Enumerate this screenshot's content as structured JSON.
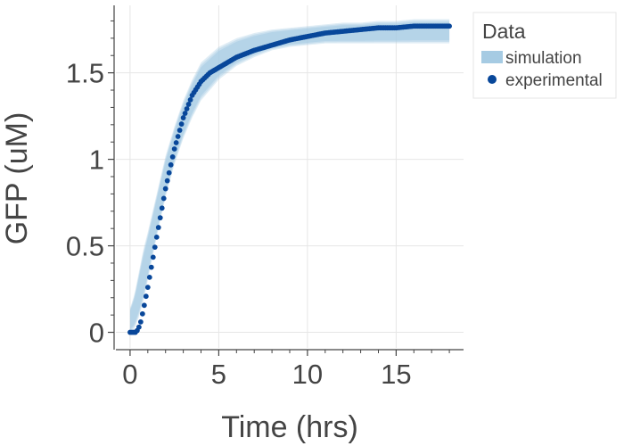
{
  "chart_data": {
    "type": "line",
    "xlabel": "Time (hrs)",
    "ylabel": "GFP (uM)",
    "xlim": [
      -0.8,
      18.8
    ],
    "ylim": [
      -0.09,
      1.89
    ],
    "xticks": [
      0,
      5,
      10,
      15
    ],
    "xtick_labels": [
      "0",
      "5",
      "10",
      "15"
    ],
    "yticks": [
      0,
      0.5,
      1,
      1.5
    ],
    "ytick_labels": [
      "0",
      "0.5",
      "1",
      "1.5"
    ],
    "legend": {
      "title": "Data",
      "position": "outside-right-top",
      "entries": [
        "simulation",
        "experimental"
      ]
    },
    "colors": {
      "simulation": "#a6cbe3",
      "experimental": "#08479a",
      "grid": "#e6e6e6",
      "axis": "#444444"
    },
    "series": [
      {
        "name": "simulation",
        "kind": "band",
        "x": [
          0,
          0.25,
          0.5,
          0.75,
          1,
          1.5,
          2,
          2.5,
          3,
          3.5,
          4,
          5,
          6,
          7,
          8,
          9,
          10,
          11,
          12,
          13,
          14,
          15,
          16,
          17,
          18
        ],
        "lower": [
          0.0,
          0.02,
          0.09,
          0.18,
          0.3,
          0.55,
          0.78,
          0.97,
          1.12,
          1.24,
          1.34,
          1.46,
          1.54,
          1.59,
          1.63,
          1.65,
          1.66,
          1.67,
          1.67,
          1.67,
          1.67,
          1.67,
          1.67,
          1.67,
          1.67
        ],
        "upper": [
          0.14,
          0.22,
          0.35,
          0.48,
          0.58,
          0.8,
          1.02,
          1.19,
          1.34,
          1.46,
          1.56,
          1.65,
          1.7,
          1.73,
          1.75,
          1.76,
          1.77,
          1.78,
          1.79,
          1.79,
          1.8,
          1.8,
          1.81,
          1.81,
          1.81
        ]
      },
      {
        "name": "experimental",
        "kind": "scatter",
        "x": [
          0,
          0.1,
          0.2,
          0.3,
          0.4,
          0.5,
          0.6,
          0.75,
          1,
          1.5,
          2,
          2.5,
          3,
          3.5,
          4,
          4.5,
          5,
          5.5,
          6,
          7,
          8,
          9,
          10,
          11,
          12,
          13,
          14,
          15,
          16,
          17,
          18
        ],
        "y": [
          0.0,
          0.0,
          0.0,
          0.0,
          0.01,
          0.03,
          0.06,
          0.13,
          0.26,
          0.55,
          0.83,
          1.06,
          1.24,
          1.37,
          1.45,
          1.5,
          1.53,
          1.56,
          1.59,
          1.63,
          1.66,
          1.69,
          1.71,
          1.73,
          1.74,
          1.75,
          1.76,
          1.76,
          1.77,
          1.77,
          1.77
        ]
      }
    ]
  }
}
